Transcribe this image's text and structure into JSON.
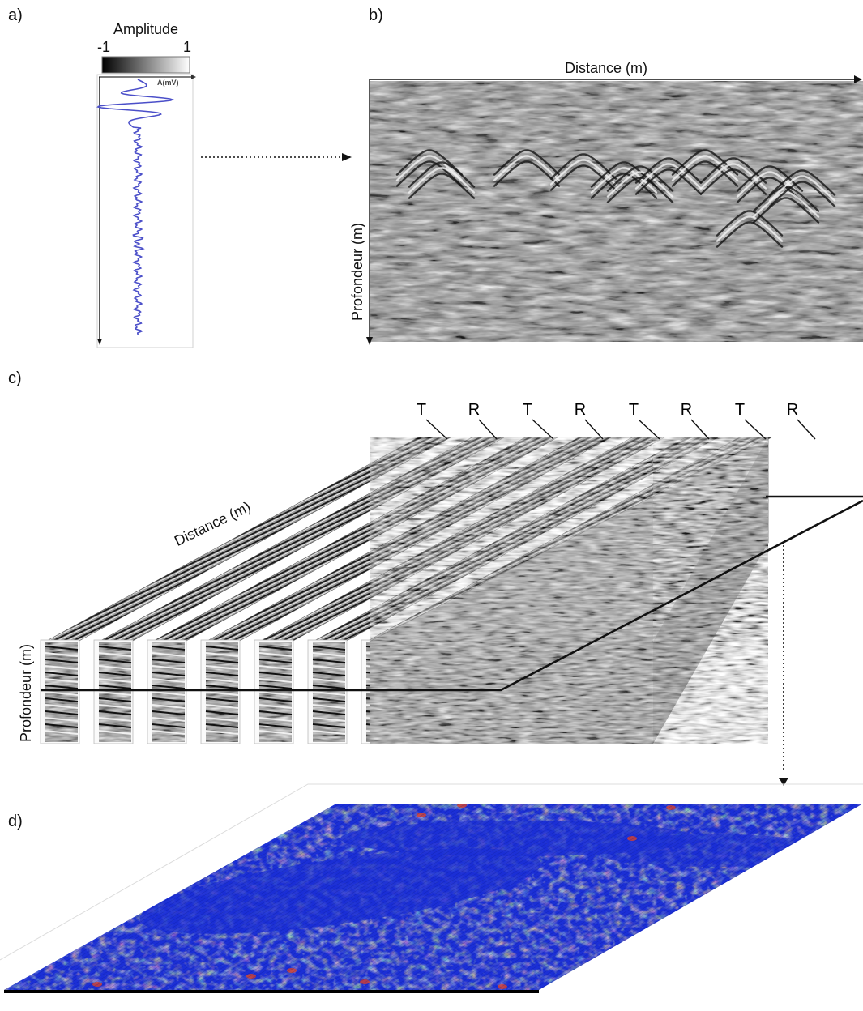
{
  "panels": {
    "a": {
      "label": "a)",
      "colorbar_title": "Amplitude",
      "colorbar_min": "-1",
      "colorbar_max": "1",
      "axis_unit": "A(mV)",
      "trace_color": "#4b4fc9"
    },
    "b": {
      "label": "b)",
      "xlabel": "Distance (m)",
      "ylabel": "Profondeur (m)"
    },
    "c": {
      "label": "c)",
      "xlabel": "Distance (m)",
      "ylabel": "Profondeur (m)",
      "antennas": [
        "T",
        "R",
        "T",
        "R",
        "T",
        "R",
        "T",
        "R"
      ]
    },
    "d": {
      "label": "d)"
    }
  },
  "colors": {
    "slice_low": "#1b2fd6",
    "slice_mid": "#2fc7e8",
    "slice_high": "#e0d230",
    "slice_peak": "#d8402a"
  }
}
